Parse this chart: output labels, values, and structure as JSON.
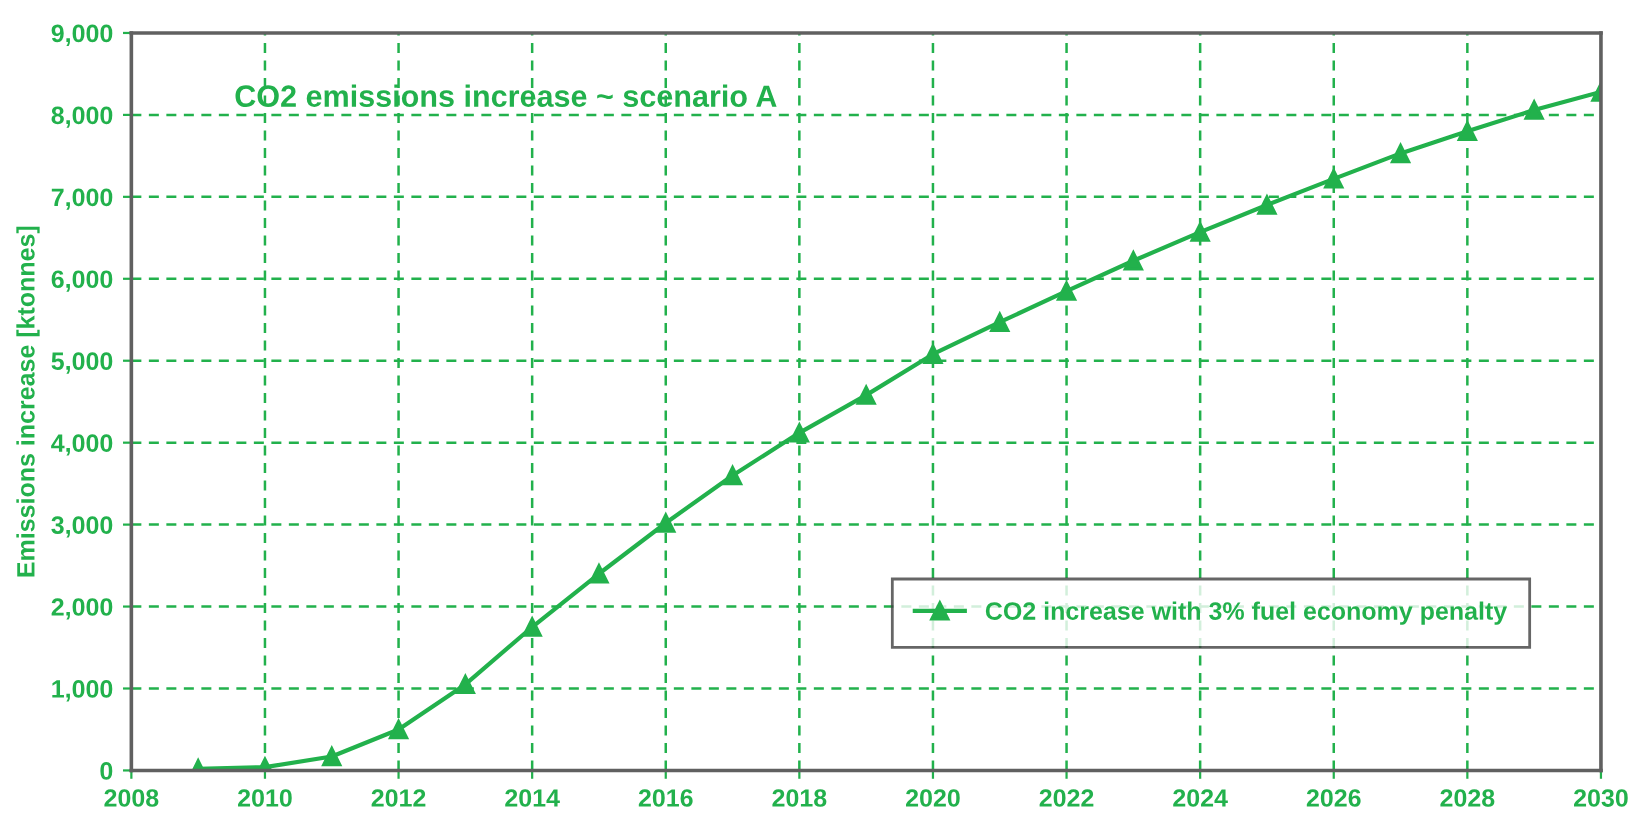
{
  "chart_data": {
    "type": "line",
    "title": "CO2 emissions increase ~ scenario A",
    "ylabel": "Emissions increase [ktonnes]",
    "x": [
      2009,
      2010,
      2011,
      2012,
      2013,
      2014,
      2015,
      2016,
      2017,
      2018,
      2019,
      2020,
      2021,
      2022,
      2023,
      2024,
      2025,
      2026,
      2027,
      2028,
      2029,
      2030
    ],
    "series": [
      {
        "name": "CO2 increase with 3% fuel economy penalty",
        "color": "#22b14c",
        "values": [
          20,
          40,
          170,
          500,
          1050,
          1750,
          2400,
          3020,
          3600,
          4120,
          4580,
          5080,
          5470,
          5850,
          6220,
          6570,
          6900,
          7220,
          7530,
          7800,
          8060,
          8280
        ]
      }
    ],
    "xlim": [
      2008,
      2030
    ],
    "xticks": [
      2008,
      2010,
      2012,
      2014,
      2016,
      2018,
      2020,
      2022,
      2024,
      2026,
      2028,
      2030
    ],
    "ylim": [
      0,
      9000
    ],
    "yticks": [
      0,
      {
        "value": 1000,
        "label": "1,000"
      },
      {
        "value": 2000,
        "label": "2,000"
      },
      {
        "value": 3000,
        "label": "3,000"
      },
      {
        "value": 4000,
        "label": "4,000"
      },
      {
        "value": 5000,
        "label": "5,000"
      },
      {
        "value": 6000,
        "label": "6,000"
      },
      {
        "value": 7000,
        "label": "7,000"
      },
      {
        "value": 8000,
        "label": "8,000"
      },
      {
        "value": 9000,
        "label": "9,000"
      }
    ],
    "grid": true,
    "legend": "bottom right",
    "marker": "triangle",
    "line_style": "solid"
  }
}
